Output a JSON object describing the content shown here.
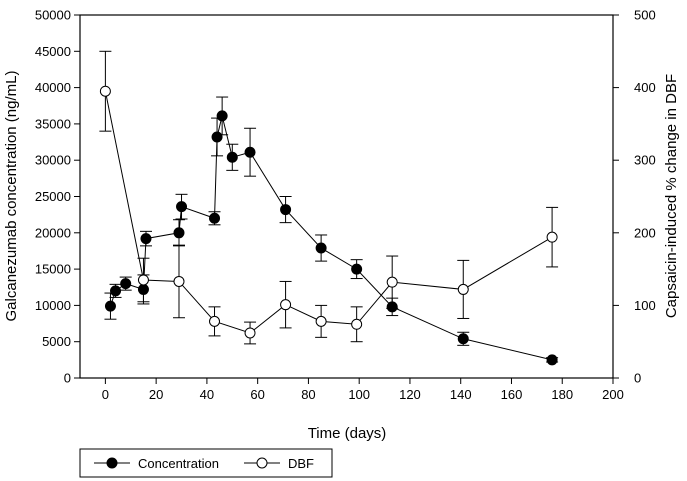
{
  "chart_data": {
    "type": "line",
    "xlabel": "Time (days)",
    "ylabel_left": "Galcanezumab concentration (ng/mL)",
    "ylabel_right": "Capsaicin-induced % change in DBF",
    "xlim": [
      -10,
      200
    ],
    "xticks": [
      "0",
      "20",
      "40",
      "60",
      "80",
      "100",
      "120",
      "140",
      "160",
      "180",
      "200"
    ],
    "ylim_left": [
      0,
      50000
    ],
    "yticks_left": [
      "0",
      "5000",
      "10000",
      "15000",
      "20000",
      "25000",
      "30000",
      "35000",
      "40000",
      "45000",
      "50000"
    ],
    "ylim_right": [
      0,
      500
    ],
    "yticks_right": [
      "0",
      "100",
      "200",
      "300",
      "400",
      "500"
    ],
    "series": [
      {
        "name": "Concentration",
        "axis": "left",
        "marker": "filled-circle",
        "points": [
          {
            "x": 2,
            "y": 9900,
            "err": 1800
          },
          {
            "x": 4,
            "y": 12000,
            "err": 900
          },
          {
            "x": 8,
            "y": 13000,
            "err": 900
          },
          {
            "x": 15,
            "y": 12200,
            "err": 2000
          },
          {
            "x": 16,
            "y": 19200,
            "err": 1000
          },
          {
            "x": 29,
            "y": 20000,
            "err": 1800
          },
          {
            "x": 30,
            "y": 23600,
            "err": 1700
          },
          {
            "x": 43,
            "y": 22000,
            "err": 900
          },
          {
            "x": 44,
            "y": 33200,
            "err": 2600
          },
          {
            "x": 46,
            "y": 36100,
            "err": 2600
          },
          {
            "x": 50,
            "y": 30400,
            "err": 1800
          },
          {
            "x": 57,
            "y": 31100,
            "err": 3300
          },
          {
            "x": 71,
            "y": 23200,
            "err": 1800
          },
          {
            "x": 85,
            "y": 17900,
            "err": 1800
          },
          {
            "x": 99,
            "y": 15000,
            "err": 1300
          },
          {
            "x": 113,
            "y": 9800,
            "err": 1200
          },
          {
            "x": 141,
            "y": 5400,
            "err": 900
          },
          {
            "x": 176,
            "y": 2500,
            "err": 300
          }
        ]
      },
      {
        "name": "DBF",
        "axis": "right",
        "marker": "open-circle",
        "points": [
          {
            "x": 0,
            "y": 395,
            "err": 55
          },
          {
            "x": 15,
            "y": 135,
            "err": 30
          },
          {
            "x": 29,
            "y": 133,
            "err": 50
          },
          {
            "x": 43,
            "y": 78,
            "err": 20
          },
          {
            "x": 57,
            "y": 62,
            "err": 15
          },
          {
            "x": 71,
            "y": 101,
            "err": 32
          },
          {
            "x": 85,
            "y": 78,
            "err": 22
          },
          {
            "x": 99,
            "y": 74,
            "err": 24
          },
          {
            "x": 113,
            "y": 132,
            "err": 36
          },
          {
            "x": 141,
            "y": 122,
            "err": 40
          },
          {
            "x": 176,
            "y": 194,
            "err": 41
          }
        ]
      }
    ],
    "legend": {
      "position": "bottom-left",
      "entries": [
        "Concentration",
        "DBF"
      ]
    }
  }
}
